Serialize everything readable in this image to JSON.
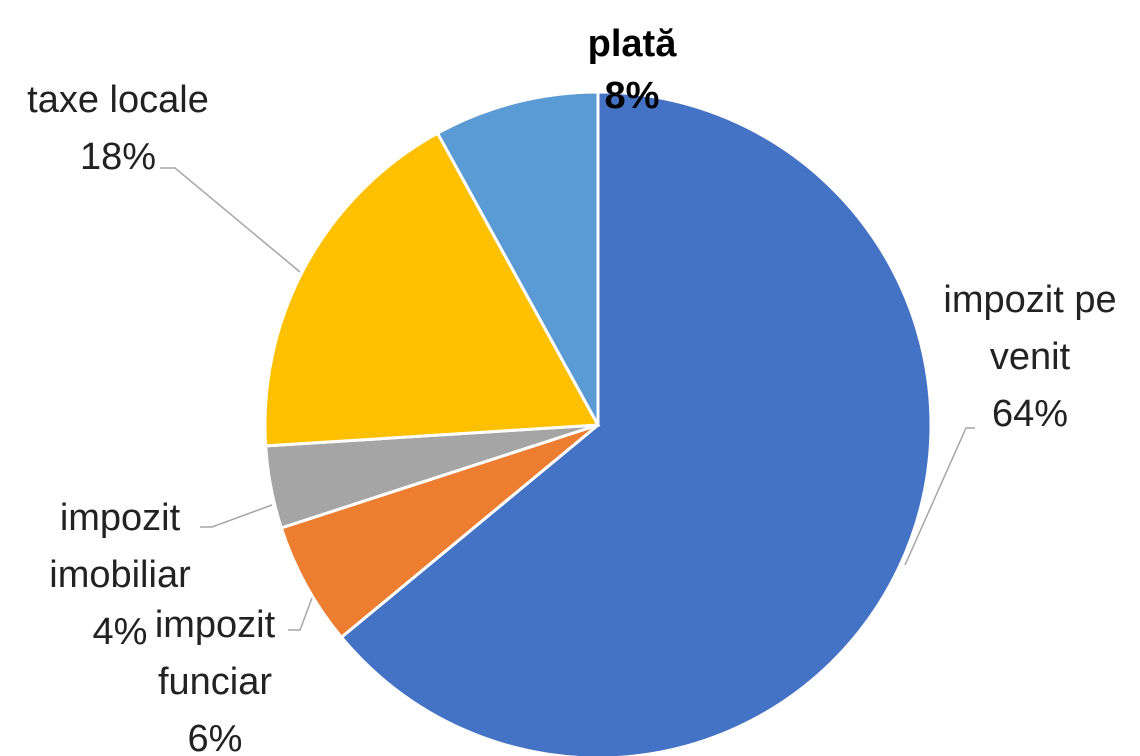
{
  "chart_data": {
    "type": "pie",
    "categories": [
      "impozit pe venit",
      "impozit funciar",
      "impozit imobiliar",
      "taxe locale",
      "plată"
    ],
    "values": [
      64,
      6,
      4,
      18,
      8
    ],
    "value_labels": [
      "64%",
      "6%",
      "4%",
      "18%",
      "8%"
    ],
    "colors": [
      "#4472c4",
      "#ed7d31",
      "#a5a5a5",
      "#ffc000",
      "#5b9bd5"
    ]
  }
}
